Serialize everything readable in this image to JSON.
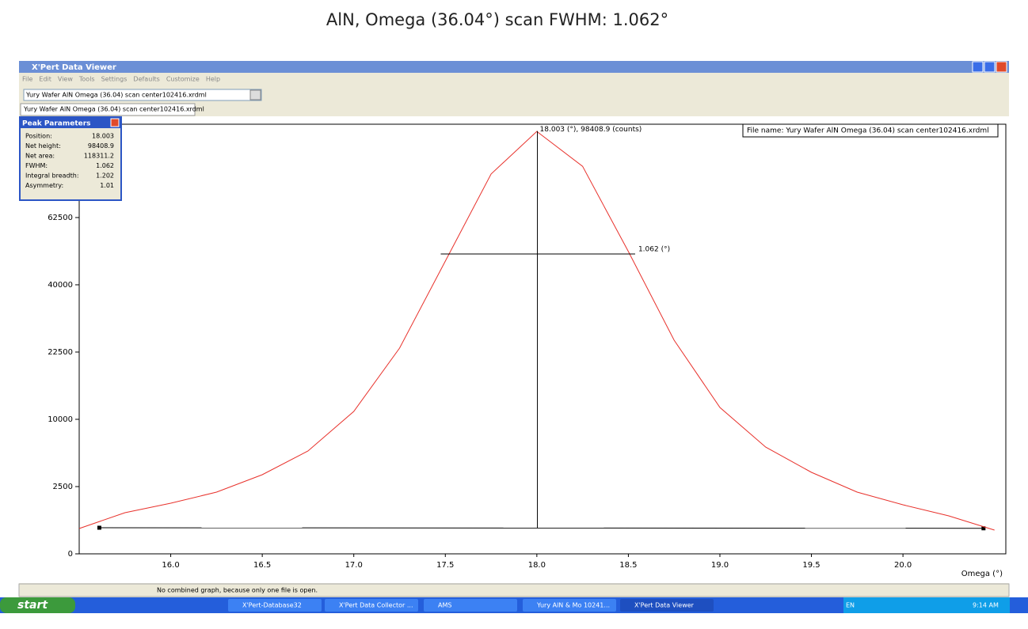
{
  "heading": "AlN, Omega (36.04°) scan FWHM: 1.062°",
  "window": {
    "title": "X'Pert Data Viewer",
    "menu": [
      "File",
      "Edit",
      "View",
      "Tools",
      "Settings",
      "Defaults",
      "Customize",
      "Help"
    ],
    "combo": "Yury Wafer AlN Omega (36.04) scan center102416.xrdml",
    "tab": "Yury Wafer AlN Omega (36.04) scan center102416.xrdml",
    "peak_parameters": {
      "title": "Peak Parameters",
      "rows": [
        [
          "Position:",
          "18.003"
        ],
        [
          "Net height:",
          "98408.9"
        ],
        [
          "Net area:",
          "118311.2"
        ],
        [
          "FWHM:",
          "1.062"
        ],
        [
          "Integral breadth:",
          "1.202"
        ],
        [
          "Asymmetry:",
          "1.01"
        ]
      ]
    },
    "status": "No combined graph, because only one file is open."
  },
  "chart_data": {
    "type": "line",
    "x": [
      15.5,
      15.75,
      16.0,
      16.25,
      16.5,
      16.75,
      17.0,
      17.25,
      17.5,
      17.75,
      18.0,
      18.25,
      18.5,
      18.75,
      19.0,
      19.25,
      19.5,
      19.75,
      20.0,
      20.25,
      20.5
    ],
    "series": [
      {
        "color": "#e8312b",
        "values": [
          354,
          936,
          1415,
          2105,
          3460,
          5850,
          11210,
          23390,
          47360,
          79740,
          98600,
          83000,
          50500,
          25220,
          11840,
          6300,
          3670,
          2105,
          1330,
          797,
          311
        ]
      }
    ],
    "background": {
      "x": [
        15.61,
        20.44
      ],
      "values": [
        377,
        360
      ]
    },
    "peak_marker": {
      "x": 18.003,
      "values": [
        377,
        98800
      ]
    },
    "fwhm_marker": {
      "x": [
        17.475,
        18.537
      ],
      "value": 49700
    },
    "peak_label": "18.003 (°), 98408.9 (counts)",
    "fwhm_label": "1.062 (°)",
    "file_label": "File name: Yury Wafer AlN Omega (36.04) scan center102416.xrdml",
    "xlabel": "Omega (°)",
    "xlim": [
      15.5,
      20.51
    ],
    "ylim": [
      0,
      102000
    ],
    "yscale": "sqrt",
    "xticks": [
      {
        "value": 16,
        "label": "16.0"
      },
      16.5,
      {
        "value": 17,
        "label": "17.0"
      },
      17.5,
      {
        "value": 18,
        "label": "18.0"
      },
      18.5,
      {
        "value": 19,
        "label": "19.0"
      },
      19.5,
      {
        "value": 20,
        "label": "20.0"
      }
    ],
    "yticks": [
      0,
      2500,
      10000,
      22500,
      40000,
      62500
    ]
  },
  "taskbar": {
    "start": "start",
    "items": [
      "X'Pert-Database32",
      "X'Pert Data Collector ...",
      "AMS",
      "Yury AlN & Mo 10241...",
      "X'Pert Data Viewer"
    ],
    "lang": "EN",
    "clock": "9:14 AM"
  }
}
